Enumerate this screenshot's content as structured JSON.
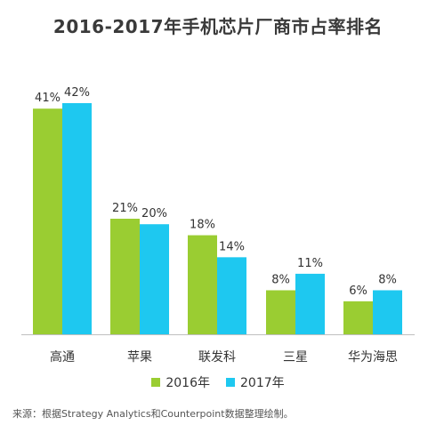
{
  "chart_data": {
    "type": "bar",
    "title": "2016-2017年手机芯片厂商市占率排名",
    "categories": [
      "高通",
      "苹果",
      "联发科",
      "三星",
      "华为海思"
    ],
    "series": [
      {
        "name": "2016年",
        "color": "#9ACD32",
        "values": [
          41,
          21,
          18,
          8,
          6
        ],
        "labels": [
          "41%",
          "21%",
          "18%",
          "8%",
          "6%"
        ]
      },
      {
        "name": "2017年",
        "color": "#1EC8F0",
        "values": [
          42,
          20,
          14,
          11,
          8
        ],
        "labels": [
          "42%",
          "20%",
          "14%",
          "11%",
          "8%"
        ]
      }
    ],
    "ylim": [
      0,
      42
    ],
    "grid": false,
    "legend_position": "bottom-center",
    "source": "来源：根据Strategy Analytics和Counterpoint数据整理绘制。"
  }
}
